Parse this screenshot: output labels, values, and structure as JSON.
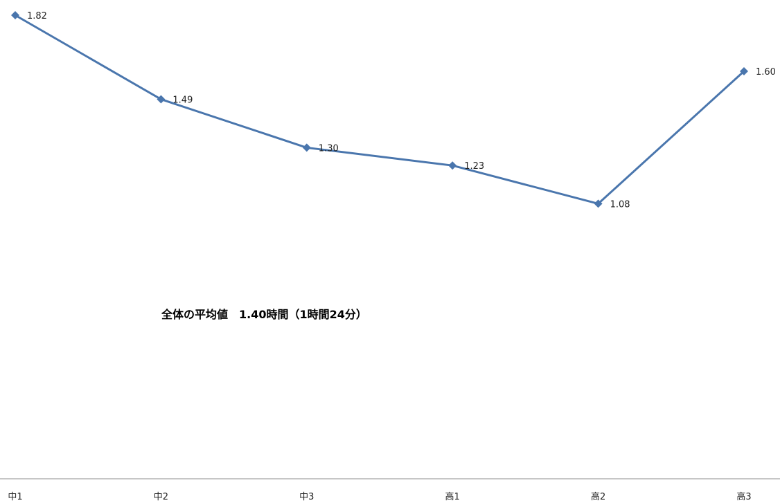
{
  "chart_data": {
    "type": "line",
    "categories": [
      "中1",
      "中2",
      "中3",
      "高1",
      "高2",
      "高3"
    ],
    "series": [
      {
        "values": [
          1.82,
          1.49,
          1.3,
          1.23,
          1.08,
          1.6
        ]
      }
    ],
    "data_labels": [
      "1.82",
      "1.49",
      "1.30",
      "1.23",
      "1.08",
      "1.60"
    ],
    "annotation": "全体の平均値　1.40時間（1時間24分）",
    "ylim": [
      0,
      1.87
    ],
    "grid": false,
    "legend": "none",
    "colors": {
      "line": "#4a76ad",
      "marker": "#4a76ad",
      "axis": "#8c8c8c"
    }
  }
}
